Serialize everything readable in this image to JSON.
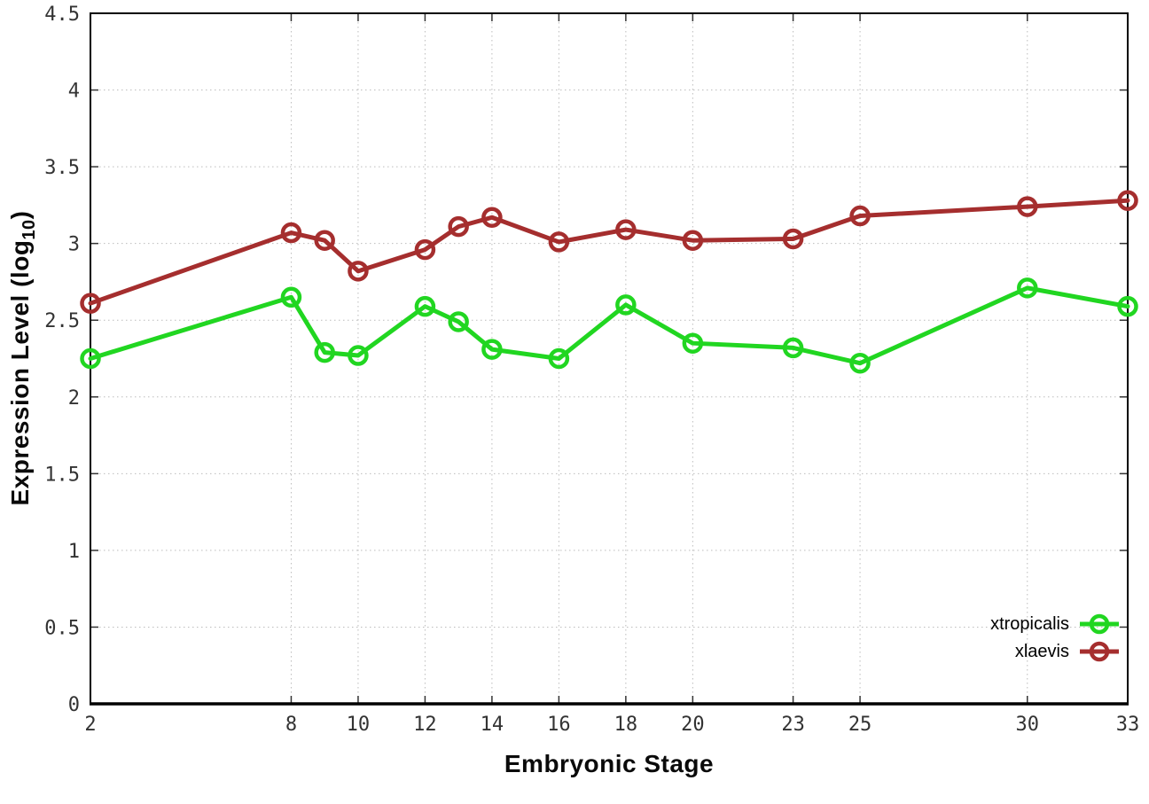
{
  "chart_data": {
    "type": "line",
    "title": "",
    "xlabel": "Embryonic Stage",
    "ylabel": "Expression Level (log10)",
    "ylabel_parts": {
      "base": "Expression Level (log",
      "sub": "10",
      "close": ")"
    },
    "x": [
      2,
      8,
      9,
      10,
      12,
      13,
      14,
      16,
      18,
      20,
      23,
      25,
      30,
      33
    ],
    "series": [
      {
        "name": "xtropicalis",
        "color": "#21d621",
        "values": [
          2.25,
          2.65,
          2.29,
          2.27,
          2.59,
          2.49,
          2.31,
          2.25,
          2.6,
          2.35,
          2.32,
          2.22,
          2.71,
          2.59
        ]
      },
      {
        "name": "xlaevis",
        "color": "#a52e2e",
        "values": [
          2.61,
          3.07,
          3.02,
          2.82,
          2.96,
          3.11,
          3.17,
          3.01,
          3.09,
          3.02,
          3.03,
          3.18,
          3.24,
          3.28
        ]
      }
    ],
    "xlim": [
      2,
      33
    ],
    "ylim": [
      0,
      4.5
    ],
    "xticks": [
      2,
      8,
      10,
      12,
      14,
      16,
      18,
      20,
      23,
      25,
      30,
      33
    ],
    "xtick_labels": [
      "2",
      "8",
      "10",
      "12",
      "14",
      "16",
      "18",
      "20",
      "23",
      "25",
      "30",
      "33"
    ],
    "yticks": [
      0,
      0.5,
      1,
      1.5,
      2,
      2.5,
      3,
      3.5,
      4,
      4.5
    ],
    "ytick_labels": [
      "0",
      "0.5",
      "1",
      "1.5",
      "2",
      "2.5",
      "3",
      "3.5",
      "4",
      "4.5"
    ],
    "grid": true,
    "legend_position": "inside-bottom-right",
    "colors": {
      "border": "#000000",
      "grid": "#bcbcbc",
      "tick": "#333333",
      "tick_text": "#333333",
      "background": "#ffffff"
    },
    "marker": "open-circle"
  }
}
